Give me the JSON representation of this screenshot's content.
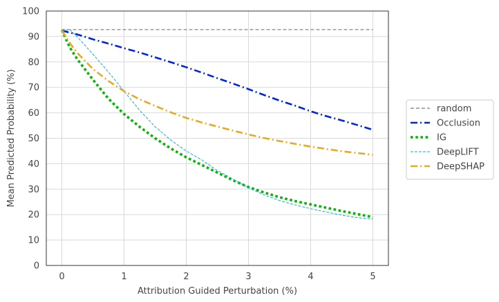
{
  "chart_data": {
    "type": "line",
    "title": "",
    "xlabel": "Attribution Guided Perturbation (%)",
    "ylabel": "Mean Predicted Probability (%)",
    "xlim": [
      -0.25,
      5.25
    ],
    "ylim": [
      0,
      100
    ],
    "xticks": [
      0,
      1,
      2,
      3,
      4,
      5
    ],
    "yticks": [
      0,
      10,
      20,
      30,
      40,
      50,
      60,
      70,
      80,
      90,
      100
    ],
    "grid": true,
    "legend_position": "outside-right",
    "series": [
      {
        "name": "random",
        "color": "#777777",
        "dash": "dashed",
        "x": [
          0,
          0.5,
          1,
          1.5,
          2,
          2.5,
          3,
          3.5,
          4,
          4.5,
          5
        ],
        "y": [
          92.7,
          92.7,
          92.7,
          92.7,
          92.7,
          92.7,
          92.7,
          92.7,
          92.7,
          92.7,
          92.7
        ]
      },
      {
        "name": "Occlusion",
        "color": "#0024d6",
        "dash": "dashdot",
        "x": [
          0,
          0.25,
          0.5,
          0.75,
          1,
          1.25,
          1.5,
          1.75,
          2,
          2.25,
          2.5,
          2.75,
          3,
          3.25,
          3.5,
          3.75,
          4,
          4.25,
          4.5,
          4.75,
          5
        ],
        "y": [
          92.3,
          90.8,
          88.9,
          87.2,
          85.4,
          83.7,
          81.8,
          79.9,
          77.9,
          75.8,
          73.6,
          71.5,
          69.3,
          67.0,
          64.8,
          62.8,
          60.6,
          58.7,
          57.0,
          55.2,
          53.3
        ]
      },
      {
        "name": "IG",
        "color": "#00b800",
        "dash": "dotted",
        "x": [
          0,
          0.125,
          0.25,
          0.5,
          0.75,
          1,
          1.25,
          1.5,
          1.75,
          2,
          2.25,
          2.5,
          2.75,
          3,
          3.25,
          3.5,
          3.75,
          4,
          4.25,
          4.5,
          4.75,
          5
        ],
        "y": [
          92.5,
          85.8,
          81.0,
          73.0,
          65.5,
          59.5,
          54.5,
          50.0,
          46.0,
          42.5,
          39.5,
          36.5,
          33.5,
          30.8,
          28.7,
          26.8,
          25.3,
          24.0,
          22.7,
          21.4,
          20.2,
          19.0
        ]
      },
      {
        "name": "DeepLIFT",
        "color": "#14a7e6",
        "dash": "thin-dashed",
        "x": [
          0,
          0.125,
          0.25,
          0.5,
          0.75,
          1,
          1.25,
          1.5,
          1.75,
          2,
          2.25,
          2.5,
          2.75,
          3,
          3.25,
          3.5,
          3.75,
          4,
          4.25,
          4.5,
          4.75,
          5
        ],
        "y": [
          92.0,
          92.8,
          89.8,
          83.0,
          76.0,
          68.5,
          61.0,
          54.5,
          49.3,
          45.0,
          41.5,
          37.3,
          34.0,
          30.5,
          27.8,
          25.5,
          23.8,
          22.3,
          21.0,
          19.8,
          18.8,
          18.2
        ]
      },
      {
        "name": "DeepSHAP",
        "color": "#e8a920",
        "dash": "dashdot",
        "x": [
          0,
          0.125,
          0.25,
          0.5,
          0.75,
          1,
          1.25,
          1.5,
          1.75,
          2,
          2.25,
          2.5,
          2.75,
          3,
          3.25,
          3.5,
          3.75,
          4,
          4.25,
          4.5,
          4.75,
          5
        ],
        "y": [
          92.4,
          87.5,
          83.5,
          77.2,
          72.5,
          68.5,
          65.3,
          62.7,
          60.2,
          58.0,
          56.2,
          54.6,
          53.0,
          51.5,
          50.1,
          48.9,
          47.8,
          46.7,
          45.8,
          44.9,
          44.2,
          43.5
        ]
      }
    ]
  }
}
